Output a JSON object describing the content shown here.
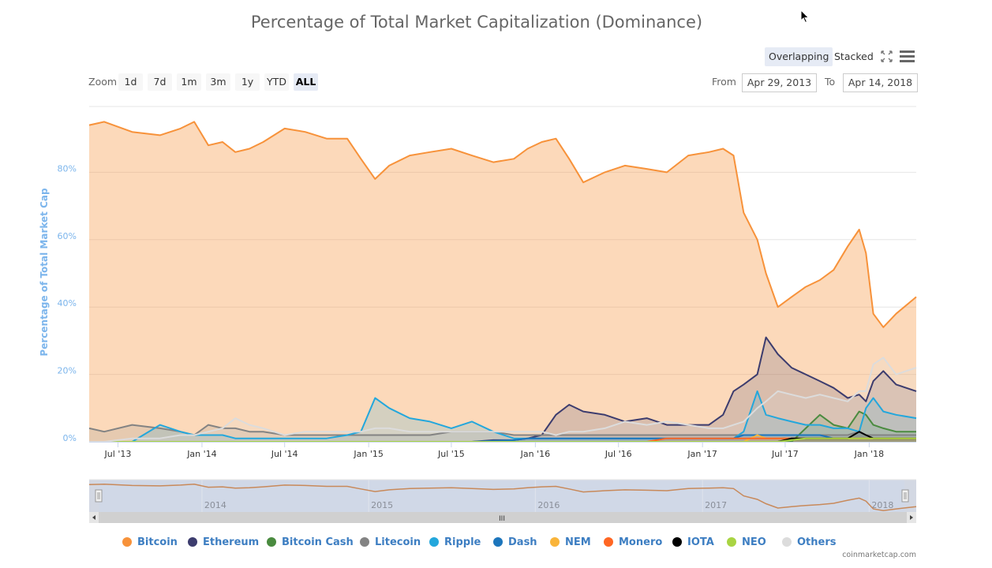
{
  "title": "Percentage of Total Market Capitalization (Dominance)",
  "toolbar": {
    "zoom_label": "Zoom",
    "zoom_buttons": [
      "1d",
      "7d",
      "1m",
      "3m",
      "1y",
      "YTD",
      "ALL"
    ],
    "active_zoom": "ALL",
    "modes": [
      "Overlapping",
      "Stacked"
    ],
    "active_mode": "Overlapping",
    "fullscreen_icon": "fullscreen-icon",
    "menu_icon": "hamburger-menu-icon",
    "from_label": "From",
    "from_value": "Apr 29, 2013",
    "to_label": "To",
    "to_value": "Apr 14, 2018"
  },
  "credits": "coinmarketcap.com",
  "navigator": {
    "year_labels": [
      "2014",
      "2015",
      "2016",
      "2017",
      "2018"
    ],
    "scrollbar_grip": "III"
  },
  "chart_data": {
    "type": "area",
    "title": "Percentage of Total Market Capitalization (Dominance)",
    "xlabel": "",
    "ylabel": "Percentage of Total Market Cap",
    "x_range": [
      "2013-04-29",
      "2018-04-14"
    ],
    "ylim": [
      0,
      100
    ],
    "y_ticks": [
      "0%",
      "20%",
      "40%",
      "60%",
      "80%"
    ],
    "y_tick_values": [
      0,
      20,
      40,
      60,
      80
    ],
    "x_ticks": [
      "Jul '13",
      "Jan '14",
      "Jul '14",
      "Jan '15",
      "Jul '15",
      "Jan '16",
      "Jul '16",
      "Jan '17",
      "Jul '17",
      "Jan '18"
    ],
    "x_tick_dates": [
      "2013-07-01",
      "2014-01-01",
      "2014-07-01",
      "2015-01-01",
      "2015-07-01",
      "2016-01-01",
      "2016-07-01",
      "2017-01-01",
      "2017-07-01",
      "2018-01-01"
    ],
    "grid": true,
    "legend_position": "bottom",
    "x": [
      "2013-04-29",
      "2013-06-01",
      "2013-08-01",
      "2013-10-01",
      "2013-11-15",
      "2013-12-15",
      "2014-01-15",
      "2014-02-15",
      "2014-03-15",
      "2014-04-15",
      "2014-05-15",
      "2014-07-01",
      "2014-08-15",
      "2014-10-01",
      "2014-11-15",
      "2014-12-15",
      "2015-01-15",
      "2015-02-15",
      "2015-04-01",
      "2015-05-15",
      "2015-07-01",
      "2015-08-15",
      "2015-10-01",
      "2015-11-15",
      "2015-12-15",
      "2016-01-15",
      "2016-02-15",
      "2016-03-15",
      "2016-04-15",
      "2016-06-01",
      "2016-07-15",
      "2016-09-01",
      "2016-10-15",
      "2016-12-01",
      "2017-01-15",
      "2017-02-15",
      "2017-03-10",
      "2017-04-01",
      "2017-05-01",
      "2017-05-20",
      "2017-06-15",
      "2017-07-15",
      "2017-08-15",
      "2017-09-15",
      "2017-10-15",
      "2017-11-15",
      "2017-12-10",
      "2017-12-25",
      "2018-01-10",
      "2018-02-01",
      "2018-03-01",
      "2018-04-14"
    ],
    "series": [
      {
        "name": "Bitcoin",
        "color": "#f7923a",
        "values": [
          94,
          95,
          92,
          91,
          93,
          95,
          88,
          89,
          86,
          87,
          89,
          93,
          92,
          90,
          90,
          84,
          78,
          82,
          85,
          86,
          87,
          85,
          83,
          84,
          87,
          89,
          90,
          84,
          77,
          80,
          82,
          81,
          80,
          85,
          86,
          87,
          85,
          68,
          60,
          50,
          40,
          43,
          46,
          48,
          51,
          58,
          63,
          56,
          38,
          34,
          38,
          43
        ]
      },
      {
        "name": "Ethereum",
        "color": "#3c3c6e",
        "values": [
          0,
          0,
          0,
          0,
          0,
          0,
          0,
          0,
          0,
          0,
          0,
          0,
          0,
          0,
          0,
          0,
          0,
          0,
          0,
          0,
          0,
          0,
          0.5,
          0.5,
          1,
          2,
          8,
          11,
          9,
          8,
          6,
          7,
          5,
          5,
          5,
          8,
          15,
          17,
          20,
          31,
          26,
          22,
          20,
          18,
          16,
          13,
          14,
          12,
          18,
          21,
          17,
          15
        ]
      },
      {
        "name": "Bitcoin Cash",
        "color": "#4a8b3f",
        "values": [
          0,
          0,
          0,
          0,
          0,
          0,
          0,
          0,
          0,
          0,
          0,
          0,
          0,
          0,
          0,
          0,
          0,
          0,
          0,
          0,
          0,
          0,
          0,
          0,
          0,
          0,
          0,
          0,
          0,
          0,
          0,
          0,
          0,
          0,
          0,
          0,
          0,
          0,
          0,
          0,
          0,
          0,
          4,
          8,
          5,
          4,
          9,
          8,
          5,
          4,
          3,
          3
        ]
      },
      {
        "name": "Litecoin",
        "color": "#838383",
        "values": [
          4,
          3,
          5,
          4,
          3,
          2,
          5,
          4,
          4,
          3,
          3,
          2,
          2,
          2,
          2,
          2,
          2,
          2,
          2,
          2,
          3,
          3,
          3,
          2,
          2,
          2,
          2,
          2,
          2,
          2,
          2,
          2,
          2,
          2,
          2,
          2,
          2,
          2,
          2,
          2,
          2,
          2,
          2,
          2,
          2,
          2,
          3,
          2,
          2,
          2,
          2,
          2
        ]
      },
      {
        "name": "Ripple",
        "color": "#23a7dc",
        "values": [
          0,
          0,
          0,
          5,
          3,
          2,
          2,
          2,
          1,
          1,
          1,
          1,
          1,
          1,
          2,
          3,
          13,
          10,
          7,
          6,
          4,
          6,
          3,
          1,
          1,
          1,
          1,
          1,
          1,
          1,
          1,
          1,
          1,
          1,
          1,
          1,
          1,
          3,
          15,
          8,
          7,
          6,
          5,
          5,
          4,
          4,
          3,
          10,
          13,
          9,
          8,
          7
        ]
      },
      {
        "name": "Dash",
        "color": "#1c75bc",
        "values": [
          0,
          0,
          0,
          0,
          0,
          0,
          0,
          0,
          0,
          0,
          0,
          0,
          0,
          0,
          0,
          0,
          0,
          0,
          0,
          0,
          0,
          0,
          0.3,
          0.5,
          1,
          1,
          1,
          1,
          1,
          1,
          1,
          1,
          1,
          1,
          1,
          1,
          1,
          2,
          2,
          2,
          2,
          2,
          2,
          2,
          1,
          1,
          1,
          1,
          1,
          1,
          1,
          1
        ]
      },
      {
        "name": "NEM",
        "color": "#f9b43a",
        "values": [
          0,
          0,
          0,
          0,
          0,
          0,
          0,
          0,
          0,
          0,
          0,
          0,
          0,
          0,
          0,
          0,
          0,
          0,
          0,
          0,
          0,
          0,
          0,
          0,
          0,
          0,
          0,
          0,
          0,
          0,
          0,
          0,
          0,
          0,
          0,
          0,
          0,
          0,
          2,
          1,
          1,
          1,
          1,
          1,
          1,
          1,
          1,
          1,
          1,
          1,
          1,
          1
        ]
      },
      {
        "name": "Monero",
        "color": "#ff6623",
        "values": [
          0,
          0,
          0,
          0,
          0,
          0,
          0,
          0,
          0,
          0,
          0,
          0,
          0,
          0,
          0,
          0,
          0,
          0,
          0,
          0,
          0,
          0,
          0,
          0,
          0,
          0,
          0,
          0,
          0,
          0,
          0,
          0,
          1,
          1,
          1,
          1,
          1,
          1,
          1,
          1,
          1,
          1,
          1,
          1,
          1,
          1,
          1,
          1,
          1,
          1,
          1,
          1
        ]
      },
      {
        "name": "IOTA",
        "color": "#000000",
        "values": [
          0,
          0,
          0,
          0,
          0,
          0,
          0,
          0,
          0,
          0,
          0,
          0,
          0,
          0,
          0,
          0,
          0,
          0,
          0,
          0,
          0,
          0,
          0,
          0,
          0,
          0,
          0,
          0,
          0,
          0,
          0,
          0,
          0,
          0,
          0,
          0,
          0,
          0,
          0,
          0,
          0,
          1,
          1,
          1,
          1,
          1,
          3,
          2,
          1,
          1,
          1,
          1
        ]
      },
      {
        "name": "NEO",
        "color": "#a9d443",
        "values": [
          0,
          0,
          0,
          0,
          0,
          0,
          0,
          0,
          0,
          0,
          0,
          0,
          0,
          0,
          0,
          0,
          0,
          0,
          0,
          0,
          0,
          0,
          0,
          0,
          0,
          0,
          0,
          0,
          0,
          0,
          0,
          0,
          0,
          0,
          0,
          0,
          0,
          0,
          0,
          0,
          0,
          0.5,
          1,
          1,
          1,
          1,
          1,
          1,
          1,
          1,
          1,
          1
        ]
      },
      {
        "name": "Others",
        "color": "#dcdcdc",
        "values": [
          0,
          0,
          1,
          1,
          2,
          2,
          3,
          4,
          7,
          5,
          4,
          2,
          3,
          3,
          3,
          3,
          4,
          4,
          3,
          3,
          3,
          3,
          3,
          3,
          3,
          3,
          2,
          3,
          3,
          4,
          6,
          5,
          6,
          5,
          4,
          4,
          5,
          6,
          10,
          12,
          15,
          14,
          13,
          14,
          13,
          12,
          15,
          15,
          23,
          25,
          20,
          22
        ]
      }
    ]
  }
}
